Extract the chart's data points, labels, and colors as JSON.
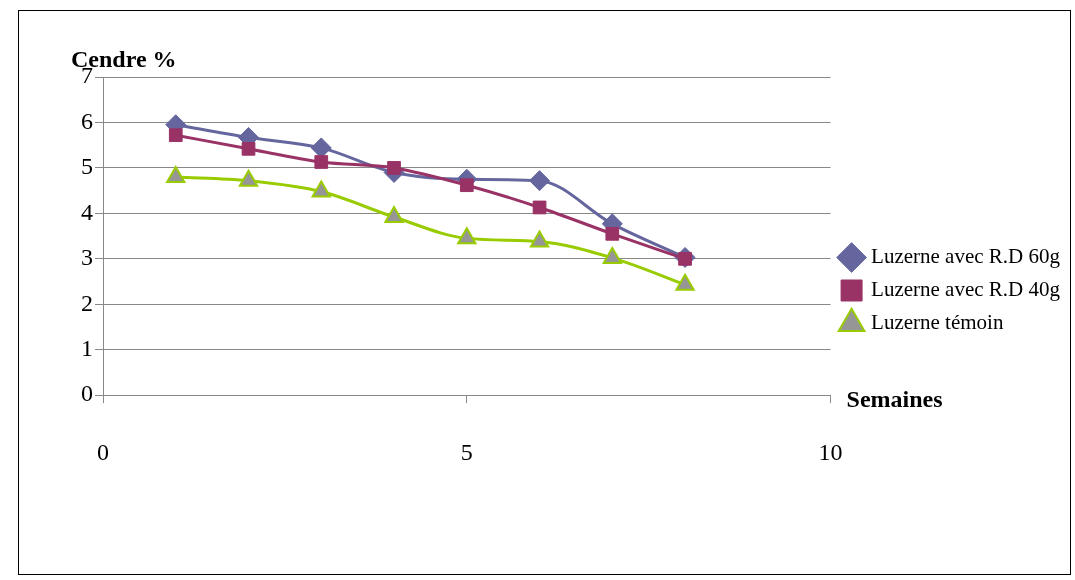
{
  "chart_data": {
    "type": "line",
    "xlabel": "Semaines",
    "ylabel": "Cendre %",
    "x": [
      1,
      2,
      3,
      4,
      5,
      6,
      7,
      8
    ],
    "xlim": [
      0,
      10
    ],
    "xticks": [
      0,
      5,
      10
    ],
    "ylim": [
      0,
      7
    ],
    "yticks": [
      0,
      1,
      2,
      3,
      4,
      5,
      6,
      7
    ],
    "grid": "y",
    "legend": "right",
    "series": [
      {
        "name": "Luzerne avec R.D 60g",
        "color": "#65669e",
        "marker": "diamond",
        "values": [
          5.95,
          5.67,
          5.44,
          4.9,
          4.75,
          4.72,
          3.77,
          3.03
        ]
      },
      {
        "name": "Luzerne avec R.D 40g",
        "color": "#993366",
        "marker": "square",
        "values": [
          5.72,
          5.42,
          5.13,
          5.0,
          4.62,
          4.13,
          3.55,
          3.0
        ]
      },
      {
        "name": "Luzerne témoin",
        "color": "#99cc00",
        "marker": "triangle",
        "values": [
          4.8,
          4.72,
          4.48,
          3.92,
          3.45,
          3.38,
          3.02,
          2.43
        ]
      }
    ]
  }
}
